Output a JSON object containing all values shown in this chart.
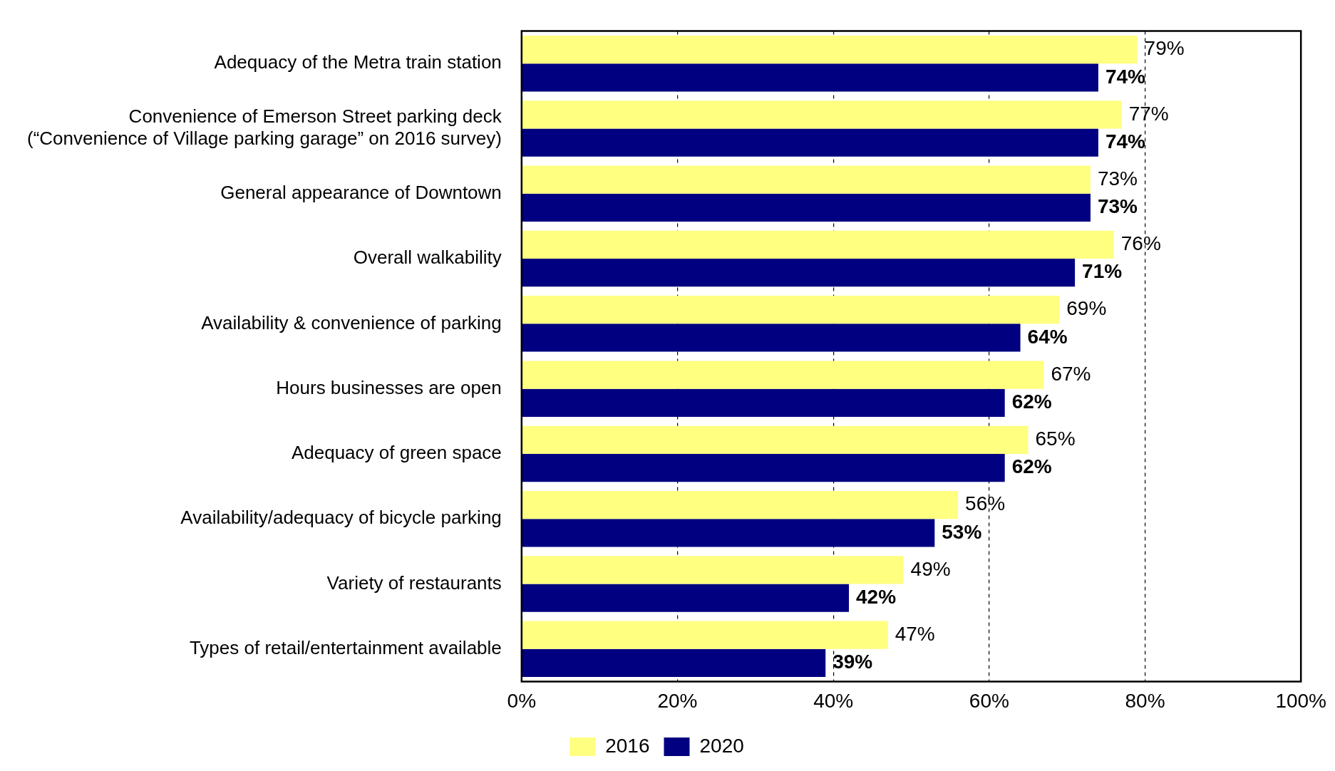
{
  "chart_data": {
    "type": "bar",
    "orientation": "horizontal",
    "categories": [
      "Adequacy of the Metra train station",
      "Convenience of Emerson Street parking deck\n(“Convenience of Village parking garage” on 2016 survey)",
      "General appearance of Downtown",
      "Overall walkability",
      "Availability & convenience of parking",
      "Hours businesses are open",
      "Adequacy of green space",
      "Availability/adequacy of bicycle parking",
      "Variety of restaurants",
      "Types of retail/entertainment available"
    ],
    "series": [
      {
        "name": "2016",
        "color": "#ffff80",
        "values": [
          79,
          77,
          73,
          76,
          69,
          67,
          65,
          56,
          49,
          47
        ],
        "value_labels": [
          "79%",
          "77%",
          "73%",
          "76%",
          "69%",
          "67%",
          "65%",
          "56%",
          "49%",
          "47%"
        ]
      },
      {
        "name": "2020",
        "color": "#000080",
        "values": [
          74,
          74,
          73,
          71,
          64,
          62,
          62,
          53,
          42,
          39
        ],
        "value_labels": [
          "74%",
          "74%",
          "73%",
          "71%",
          "64%",
          "62%",
          "62%",
          "53%",
          "42%",
          "39%"
        ]
      }
    ],
    "xlim": [
      0,
      100
    ],
    "xticks": [
      {
        "value": 0,
        "label": "0%"
      },
      {
        "value": 20,
        "label": "20%"
      },
      {
        "value": 40,
        "label": "40%"
      },
      {
        "value": 60,
        "label": "60%"
      },
      {
        "value": 80,
        "label": "80%"
      },
      {
        "value": 100,
        "label": "100%"
      }
    ],
    "grid": "x",
    "legend": "bottom"
  }
}
